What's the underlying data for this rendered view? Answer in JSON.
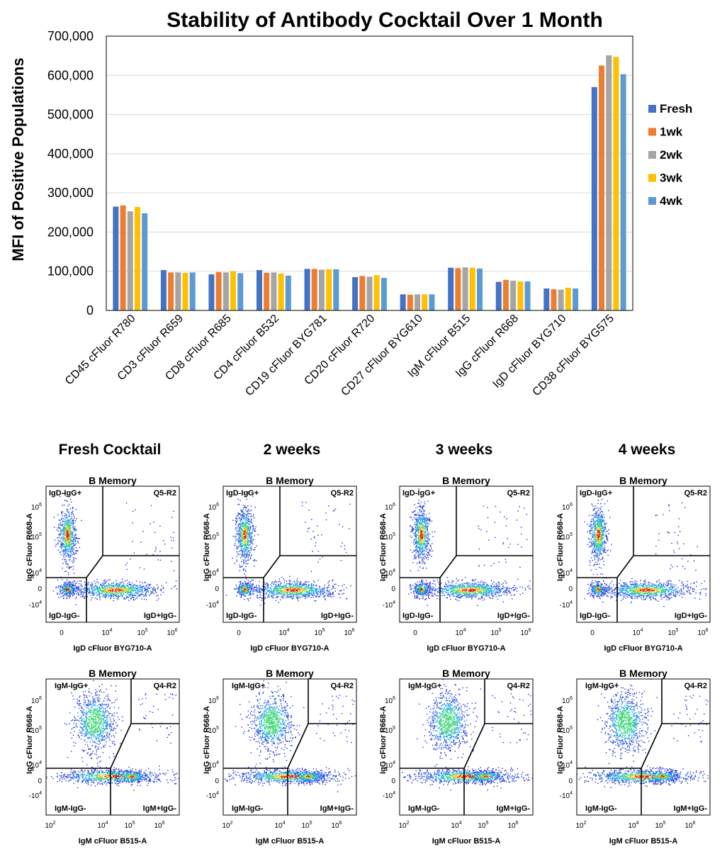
{
  "chart_data": [
    {
      "type": "bar",
      "title": "Stability of Antibody Cocktail Over 1 Month",
      "xlabel": "",
      "ylabel": "MFI of Positive Populations",
      "ylim": [
        0,
        700000
      ],
      "yticks": [
        "0",
        "100,000",
        "200,000",
        "300,000",
        "400,000",
        "500,000",
        "600,000",
        "700,000"
      ],
      "categories": [
        "CD45 cFluor R780",
        "CD3 cFluor R659",
        "CD8 cFluor R685",
        "CD4 cFluor B532",
        "CD19 cFluor BYG781",
        "CD20 cFluor R720",
        "CD27 cFluor BYG610",
        "IgM cFluor B515",
        "IgG cFluor R668",
        "IgD cFluor BYG710",
        "CD38 cFluor BYG575"
      ],
      "legend_position": "right",
      "series": [
        {
          "name": "Fresh",
          "color": "#4472C4",
          "values": [
            265000,
            103000,
            92000,
            103000,
            106000,
            85000,
            41000,
            109000,
            73000,
            56000,
            570000
          ]
        },
        {
          "name": "1wk",
          "color": "#ED7D31",
          "values": [
            268000,
            97000,
            98000,
            96000,
            106000,
            88000,
            40000,
            108000,
            78000,
            54000,
            625000
          ]
        },
        {
          "name": "2wk",
          "color": "#A5A5A5",
          "values": [
            253000,
            97000,
            97000,
            97000,
            104000,
            86000,
            41000,
            110000,
            76000,
            53000,
            651000
          ]
        },
        {
          "name": "3wk",
          "color": "#FFC000",
          "values": [
            264000,
            96000,
            100000,
            94000,
            105000,
            90000,
            41000,
            109000,
            74000,
            58000,
            647000
          ]
        },
        {
          "name": "4wk",
          "color": "#5B9BD5",
          "values": [
            248000,
            97000,
            95000,
            89000,
            105000,
            83000,
            41000,
            107000,
            74000,
            56000,
            603000
          ]
        }
      ]
    },
    {
      "type": "scatter",
      "description_columns": [
        "Fresh Cocktail",
        "2 weeks",
        "3 weeks",
        "4 weeks"
      ],
      "rows": [
        {
          "panel_title": "B Memory",
          "xlabel": "IgD cFluor BYG710-A",
          "ylabel": "IgG cFluor R668-A",
          "quadrants": [
            "IgD-IgG+",
            "Q5-R2",
            "IgD-IgG-",
            "IgD+IgG-"
          ],
          "xticks": [
            "0",
            "10",
            "10",
            "10"
          ],
          "xtick_exps": [
            "",
            "4",
            "5",
            "6"
          ],
          "yticks": [
            "10",
            "10",
            "10",
            "0",
            "-10"
          ],
          "ytick_exps": [
            "6",
            "5",
            "4",
            "",
            "4"
          ]
        },
        {
          "panel_title": "B Memory",
          "xlabel": "IgM cFluor B515-A",
          "ylabel": "IgG cFluor R668-A",
          "quadrants": [
            "IgM-IgG+",
            "Q4-R2",
            "IgM-IgG-",
            "IgM+IgG-"
          ],
          "xticks": [
            "10",
            "10",
            "10",
            "10"
          ],
          "xtick_exps": [
            "2",
            "4",
            "5",
            "6"
          ],
          "yticks": [
            "10",
            "10",
            "10",
            "0",
            "-10"
          ],
          "ytick_exps": [
            "6",
            "5",
            "4",
            "",
            "4"
          ]
        }
      ]
    }
  ],
  "columns": [
    {
      "title": "Fresh Cocktail"
    },
    {
      "title": "2 weeks"
    },
    {
      "title": "3 weeks"
    },
    {
      "title": "4 weeks"
    }
  ]
}
